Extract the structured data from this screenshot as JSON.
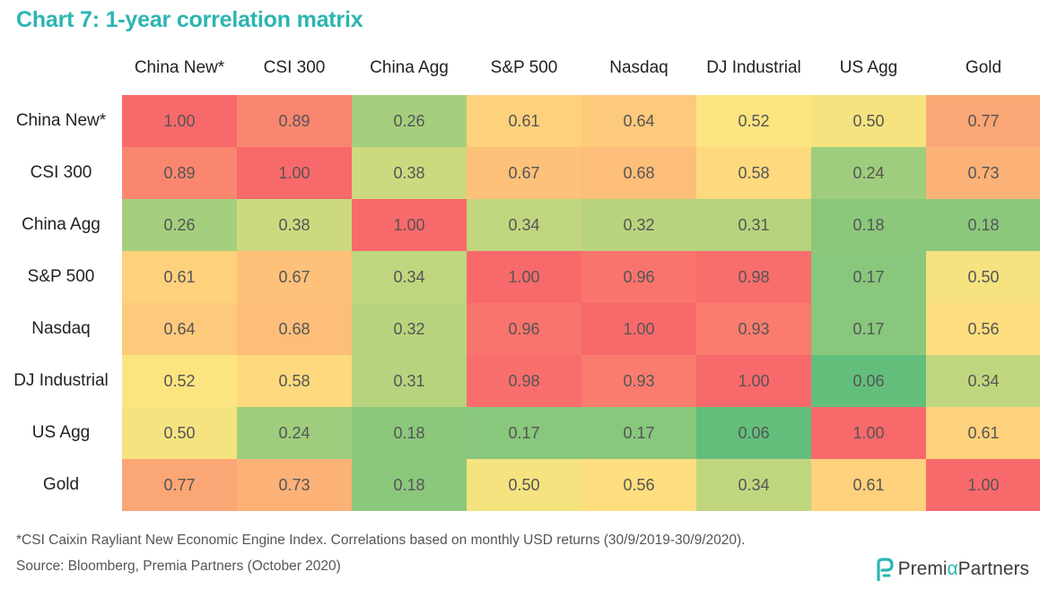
{
  "title": "Chart 7: 1-year correlation matrix",
  "footnote": "*CSI Caixin Rayliant New Economic Engine Index. Correlations based on monthly USD returns (30/9/2019-30/9/2020).",
  "source": "Source: Bloomberg, Premia Partners (October 2020)",
  "logo": {
    "part1": "Premi",
    "alpha": "α",
    "part2": " Partners"
  },
  "colors": {
    "title": "#2bb5b2",
    "high": "#f8696b",
    "mid": "#ffe680",
    "low": "#63be7b"
  },
  "chart_data": {
    "type": "heatmap",
    "title": "Chart 7: 1-year correlation matrix",
    "x_labels": [
      "China New*",
      "CSI 300",
      "China Agg",
      "S&P 500",
      "Nasdaq",
      "DJ Industrial",
      "US Agg",
      "Gold"
    ],
    "y_labels": [
      "China New*",
      "CSI 300",
      "China Agg",
      "S&P 500",
      "Nasdaq",
      "DJ Industrial",
      "US Agg",
      "Gold"
    ],
    "values": [
      [
        "1.00",
        "0.89",
        "0.26",
        "0.61",
        "0.64",
        "0.52",
        "0.50",
        "0.77"
      ],
      [
        "0.89",
        "1.00",
        "0.38",
        "0.67",
        "0.68",
        "0.58",
        "0.24",
        "0.73"
      ],
      [
        "0.26",
        "0.38",
        "1.00",
        "0.34",
        "0.32",
        "0.31",
        "0.18",
        "0.18"
      ],
      [
        "0.61",
        "0.67",
        "0.34",
        "1.00",
        "0.96",
        "0.98",
        "0.17",
        "0.50"
      ],
      [
        "0.64",
        "0.68",
        "0.32",
        "0.96",
        "1.00",
        "0.93",
        "0.17",
        "0.56"
      ],
      [
        "0.52",
        "0.58",
        "0.31",
        "0.98",
        "0.93",
        "1.00",
        "0.06",
        "0.34"
      ],
      [
        "0.50",
        "0.24",
        "0.18",
        "0.17",
        "0.17",
        "0.06",
        "1.00",
        "0.61"
      ],
      [
        "0.77",
        "0.73",
        "0.18",
        "0.50",
        "0.56",
        "0.34",
        "0.61",
        "1.00"
      ]
    ]
  }
}
